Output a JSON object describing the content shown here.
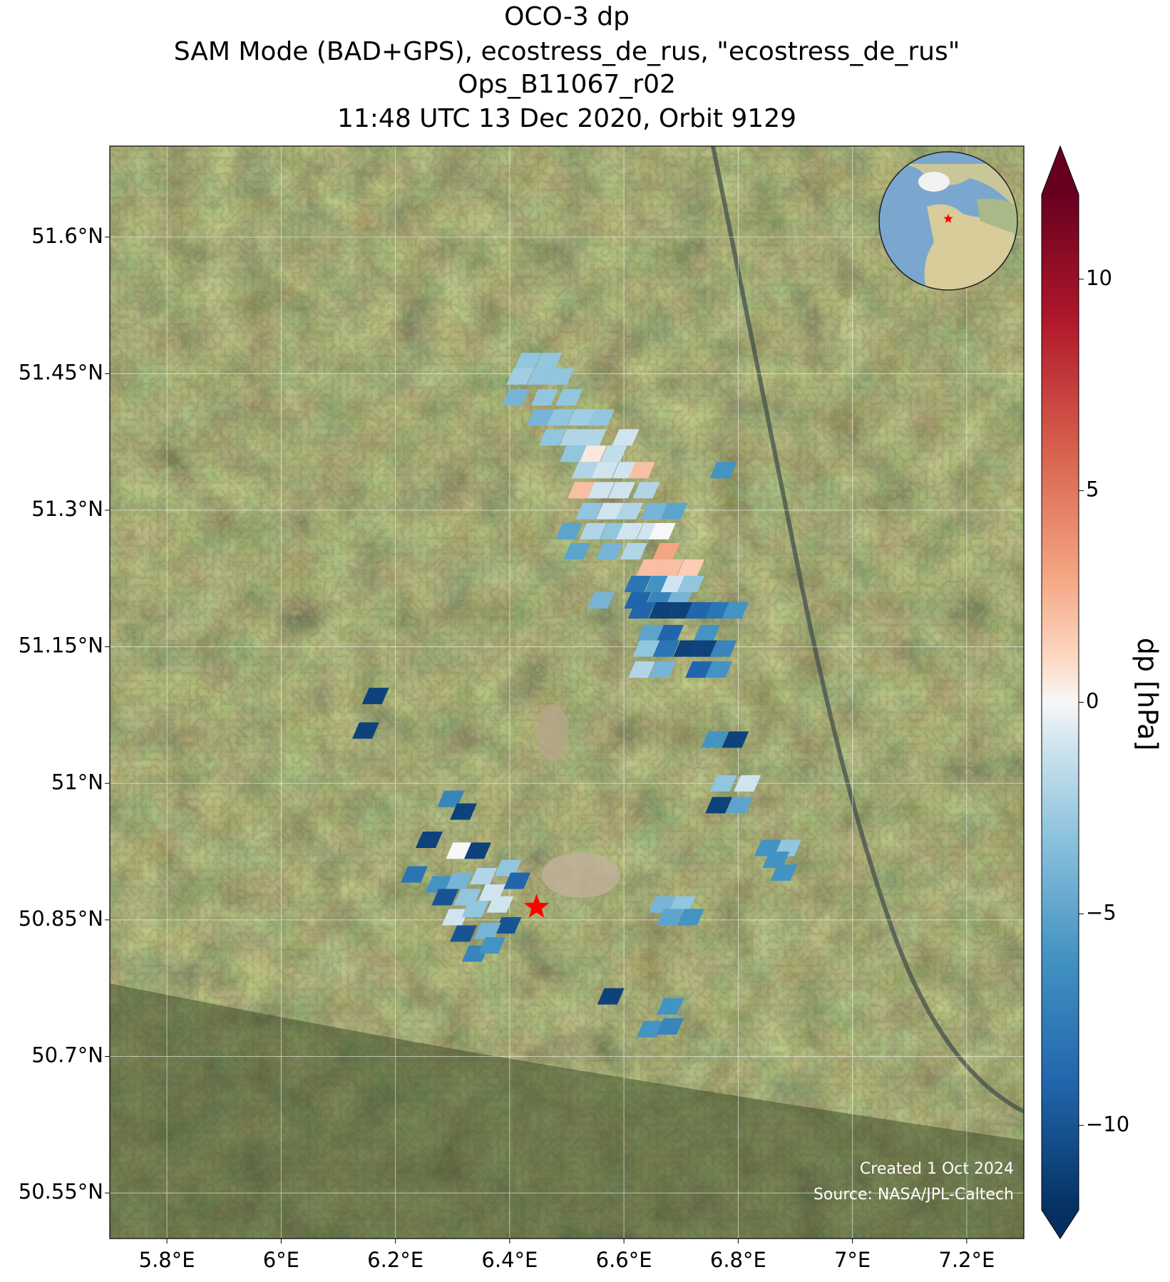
{
  "chart_data": {
    "type": "map",
    "title": [
      "OCO-3 dp",
      "SAM Mode (BAD+GPS), ecostress_de_rus, \"ecostress_de_rus\"",
      "Ops_B11067_r02",
      "11:48 UTC 13 Dec 2020, Orbit 9129"
    ],
    "xlim": [
      5.7,
      7.3
    ],
    "ylim": [
      50.5,
      51.7
    ],
    "xticks": [
      {
        "value": 5.8,
        "label": "5.8°E"
      },
      {
        "value": 6,
        "label": "6°E"
      },
      {
        "value": 6.2,
        "label": "6.2°E"
      },
      {
        "value": 6.4,
        "label": "6.4°E"
      },
      {
        "value": 6.6,
        "label": "6.6°E"
      },
      {
        "value": 6.8,
        "label": "6.8°E"
      },
      {
        "value": 7,
        "label": "7°E"
      },
      {
        "value": 7.2,
        "label": "7.2°E"
      }
    ],
    "yticks": [
      {
        "value": 50.55,
        "label": "50.55°N"
      },
      {
        "value": 50.7,
        "label": "50.7°N"
      },
      {
        "value": 50.85,
        "label": "50.85°N"
      },
      {
        "value": 51,
        "label": "51°N"
      },
      {
        "value": 51.15,
        "label": "51.15°N"
      },
      {
        "value": 51.3,
        "label": "51.3°N"
      },
      {
        "value": 51.45,
        "label": "51.45°N"
      },
      {
        "value": 51.6,
        "label": "51.6°N"
      }
    ],
    "grid": true,
    "colormap": "RdBu_r",
    "clim": [
      -12,
      12
    ],
    "cticks": [
      {
        "value": -10,
        "label": "−10"
      },
      {
        "value": -5,
        "label": "−5"
      },
      {
        "value": 0,
        "label": "0"
      },
      {
        "value": 5,
        "label": "5"
      },
      {
        "value": 10,
        "label": "10"
      }
    ],
    "colorbar_label": "dp [hPa]",
    "annotations": [
      "Created 1 Oct 2024",
      "Source: NASA/JPL-Caltech"
    ],
    "target": {
      "lon": 6.447,
      "lat": 50.864
    },
    "lon": [
      6.432,
      6.468,
      6.418,
      6.454,
      6.489,
      6.411,
      6.461,
      6.504,
      6.454,
      6.489,
      6.525,
      6.56,
      6.475,
      6.511,
      6.546,
      6.603,
      6.511,
      6.546,
      6.582,
      6.532,
      6.567,
      6.603,
      6.631,
      6.525,
      6.56,
      6.596,
      6.639,
      6.539,
      6.575,
      6.61,
      6.653,
      6.688,
      6.504,
      6.546,
      6.582,
      6.61,
      6.646,
      6.667,
      6.518,
      6.575,
      6.617,
      6.674,
      6.646,
      6.681,
      6.717,
      6.624,
      6.66,
      6.688,
      6.717,
      6.56,
      6.624,
      6.66,
      6.695,
      6.631,
      6.667,
      6.702,
      6.731,
      6.766,
      6.795,
      6.646,
      6.681,
      6.745,
      6.639,
      6.674,
      6.71,
      6.745,
      6.774,
      6.631,
      6.667,
      6.731,
      6.766,
      6.774,
      6.165,
      6.148,
      6.759,
      6.795,
      6.774,
      6.816,
      6.766,
      6.802,
      6.297,
      6.319,
      6.259,
      6.312,
      6.344,
      6.233,
      6.276,
      6.312,
      6.354,
      6.397,
      6.413,
      6.287,
      6.326,
      6.369,
      6.305,
      6.34,
      6.383,
      6.397,
      6.319,
      6.361,
      6.34,
      6.369,
      6.667,
      6.702,
      6.681,
      6.717,
      6.852,
      6.887,
      6.866,
      6.88,
      6.577,
      6.681,
      6.646,
      6.681
    ],
    "lat": [
      51.464,
      51.464,
      51.447,
      51.447,
      51.447,
      51.424,
      51.424,
      51.424,
      51.402,
      51.402,
      51.402,
      51.402,
      51.38,
      51.38,
      51.38,
      51.38,
      51.362,
      51.362,
      51.362,
      51.344,
      51.344,
      51.344,
      51.344,
      51.322,
      51.322,
      51.322,
      51.322,
      51.299,
      51.299,
      51.299,
      51.299,
      51.299,
      51.277,
      51.277,
      51.277,
      51.277,
      51.277,
      51.277,
      51.255,
      51.255,
      51.255,
      51.255,
      51.237,
      51.237,
      51.237,
      51.219,
      51.219,
      51.219,
      51.219,
      51.201,
      51.201,
      51.201,
      51.201,
      51.19,
      51.19,
      51.19,
      51.19,
      51.19,
      51.19,
      51.165,
      51.165,
      51.165,
      51.148,
      51.148,
      51.148,
      51.148,
      51.148,
      51.125,
      51.125,
      51.125,
      51.125,
      51.344,
      51.096,
      51.058,
      51.048,
      51.048,
      51.0,
      51.0,
      50.976,
      50.976,
      50.983,
      50.969,
      50.938,
      50.926,
      50.926,
      50.9,
      50.889,
      50.893,
      50.898,
      50.907,
      50.893,
      50.875,
      50.875,
      50.88,
      50.853,
      50.862,
      50.867,
      50.844,
      50.835,
      50.838,
      50.813,
      50.822,
      50.867,
      50.867,
      50.853,
      50.853,
      50.929,
      50.929,
      50.916,
      50.902,
      50.766,
      50.755,
      50.73,
      50.733
    ],
    "values": [
      -3,
      -3,
      -2.5,
      -3,
      -3,
      -4,
      -3,
      -3,
      -4,
      -3,
      -2.5,
      -3,
      -3,
      -2,
      -2,
      -1,
      -3,
      0.5,
      -1.5,
      -2,
      -1,
      -1,
      2,
      2,
      -1,
      -1,
      -2,
      -3,
      -1,
      -2,
      -4,
      -5,
      -5,
      -2,
      -3,
      -1,
      -1,
      0,
      -5,
      -4,
      -2,
      3,
      2,
      2,
      1.5,
      -8,
      -6,
      -1,
      -3,
      -4,
      -9,
      -7,
      -4,
      -9,
      -11,
      -11,
      -9,
      -8,
      -6,
      -5,
      -9,
      -6,
      -3,
      -8,
      -11,
      -11,
      -7,
      -2,
      -4,
      -9,
      -6,
      -6,
      -11,
      -11,
      -6,
      -11,
      -3,
      -1,
      -11,
      -5,
      -7,
      -11,
      -11,
      0,
      -11,
      -8,
      -6,
      -4,
      -2,
      -3,
      -9,
      -10,
      -3,
      -1,
      -1,
      -3,
      -1,
      -10,
      -10,
      -4,
      -7,
      -6,
      -4,
      -3,
      -5,
      -6,
      -6,
      -3,
      -6,
      -6,
      -11,
      -6,
      -6,
      -7
    ]
  }
}
